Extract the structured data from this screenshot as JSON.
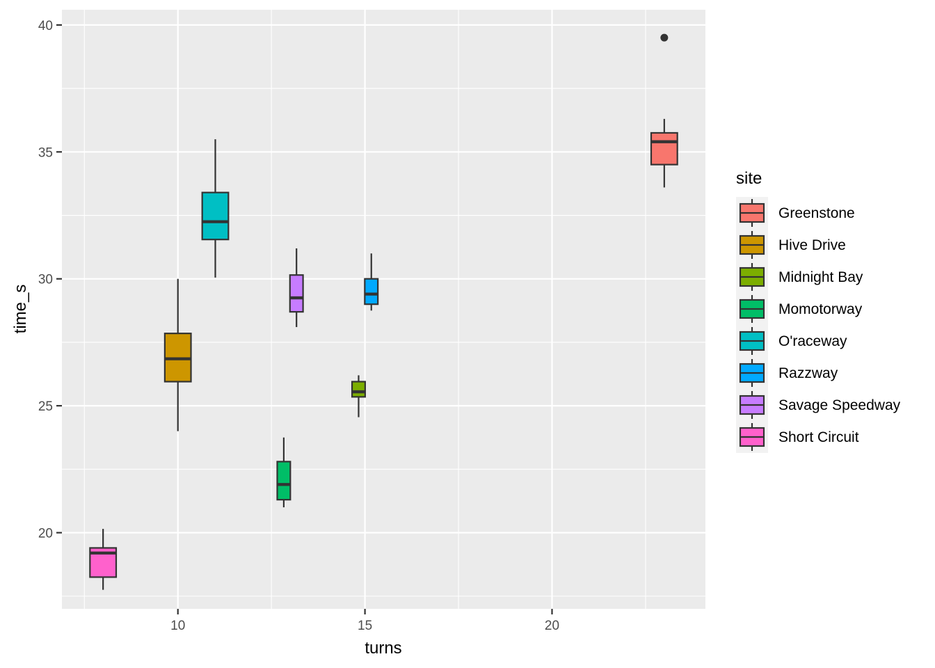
{
  "chart_data": {
    "type": "boxplot",
    "xlabel": "turns",
    "ylabel": "time_s",
    "xlim": [
      6.9,
      24.1
    ],
    "ylim": [
      17.0,
      40.6
    ],
    "x_ticks": [
      10,
      15,
      20
    ],
    "x_minor_ticks": [
      7.5,
      12.5,
      17.5,
      22.5
    ],
    "y_ticks": [
      20,
      25,
      30,
      35,
      40
    ],
    "y_minor_ticks": [
      17.5,
      22.5,
      27.5,
      32.5,
      37.5
    ],
    "grid": true,
    "legend": {
      "title": "site",
      "position": "right",
      "entries": [
        "Greenstone",
        "Hive Drive",
        "Midnight Bay",
        "Momotorway",
        "O'raceway",
        "Razzway",
        "Savage Speedway",
        "Short Circuit"
      ]
    },
    "series": [
      {
        "name": "Greenstone",
        "color": "#F8766D",
        "x": 23.0,
        "width": 0.7,
        "whisker_low": 33.6,
        "q1": 34.5,
        "median": 35.4,
        "q3": 35.75,
        "whisker_high": 36.3,
        "outliers": [
          39.5
        ]
      },
      {
        "name": "Hive Drive",
        "color": "#CD9600",
        "x": 10.0,
        "width": 0.7,
        "whisker_low": 24.0,
        "q1": 25.95,
        "median": 26.85,
        "q3": 27.85,
        "whisker_high": 30.0,
        "outliers": []
      },
      {
        "name": "Midnight Bay",
        "color": "#7CAE00",
        "x": 14.83,
        "width": 0.35,
        "whisker_low": 24.55,
        "q1": 25.35,
        "median": 25.55,
        "q3": 25.95,
        "whisker_high": 26.2,
        "outliers": []
      },
      {
        "name": "Momotorway",
        "color": "#00BE67",
        "x": 12.83,
        "width": 0.35,
        "whisker_low": 21.0,
        "q1": 21.3,
        "median": 21.9,
        "q3": 22.8,
        "whisker_high": 23.75,
        "outliers": []
      },
      {
        "name": "O'raceway",
        "color": "#00BFC4",
        "x": 11.0,
        "width": 0.7,
        "whisker_low": 30.05,
        "q1": 31.55,
        "median": 32.25,
        "q3": 33.4,
        "whisker_high": 35.5,
        "outliers": []
      },
      {
        "name": "Razzway",
        "color": "#00A9FF",
        "x": 15.17,
        "width": 0.35,
        "whisker_low": 28.75,
        "q1": 29.0,
        "median": 29.4,
        "q3": 30.0,
        "whisker_high": 31.0,
        "outliers": []
      },
      {
        "name": "Savage Speedway",
        "color": "#C77CFF",
        "x": 13.17,
        "width": 0.35,
        "whisker_low": 28.1,
        "q1": 28.7,
        "median": 29.25,
        "q3": 30.15,
        "whisker_high": 31.2,
        "outliers": []
      },
      {
        "name": "Short Circuit",
        "color": "#FF61CC",
        "x": 8.0,
        "width": 0.7,
        "whisker_low": 17.75,
        "q1": 18.25,
        "median": 19.2,
        "q3": 19.4,
        "whisker_high": 20.15,
        "outliers": []
      }
    ]
  }
}
